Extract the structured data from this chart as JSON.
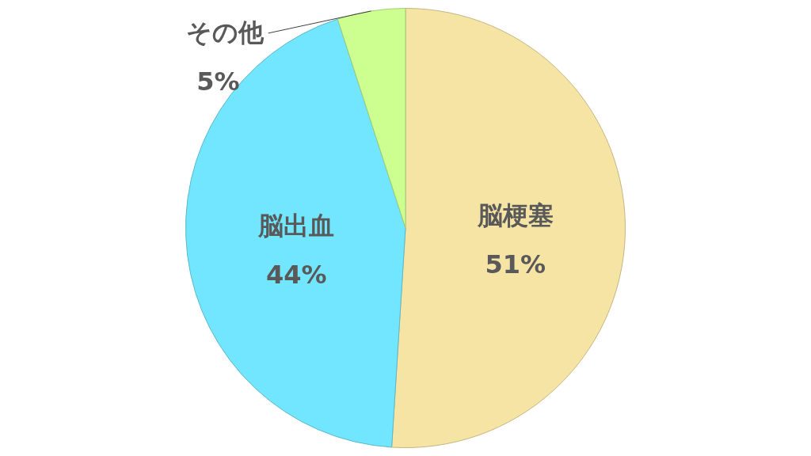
{
  "chart_data": {
    "type": "pie",
    "categories": [
      "脳梗塞",
      "脳出血",
      "その他"
    ],
    "values": [
      51,
      44,
      5
    ],
    "colors": [
      "#f6e4a4",
      "#72e6fe",
      "#ccff90"
    ],
    "value_labels": [
      "51%",
      "44%",
      "5%"
    ],
    "legend": false
  }
}
